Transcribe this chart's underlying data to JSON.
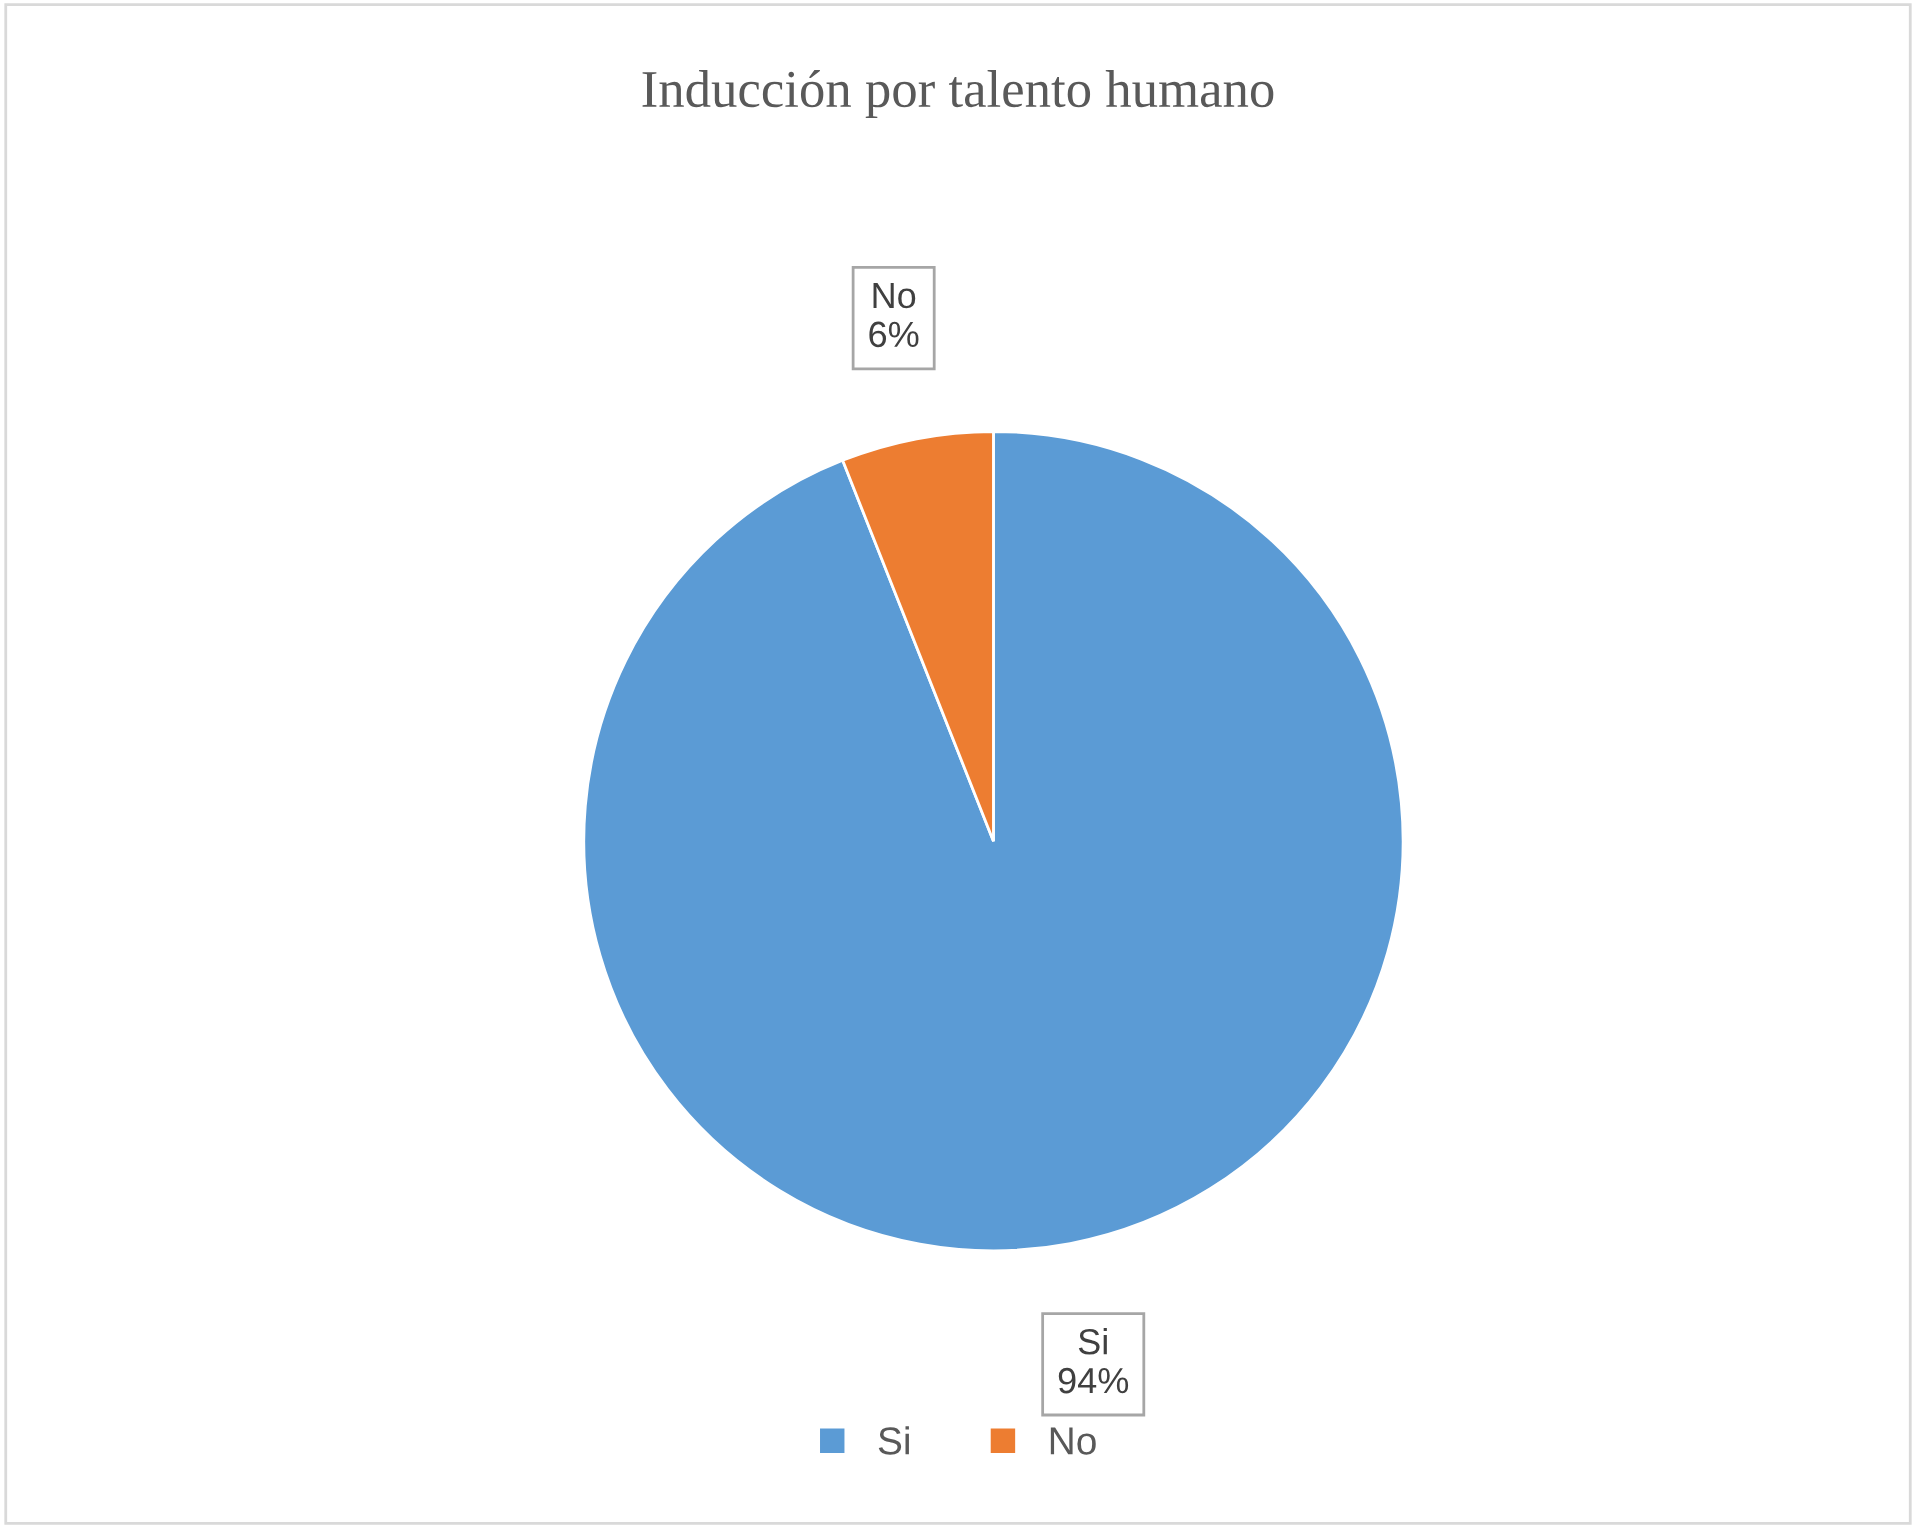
{
  "chart_data": {
    "type": "pie",
    "title": "Inducción por talento humano",
    "categories": [
      "Si",
      "No"
    ],
    "values": [
      94,
      6
    ],
    "value_labels": [
      "94%",
      "6%"
    ],
    "colors": [
      "#5b9bd5",
      "#ed7d31"
    ],
    "legend": "bottom"
  }
}
